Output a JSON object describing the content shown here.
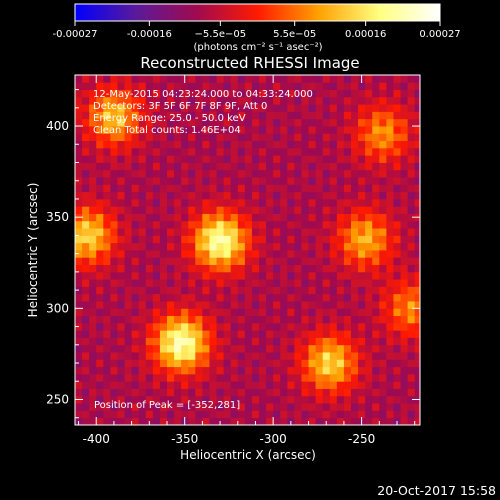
{
  "chart_data": {
    "type": "heatmap",
    "title": "Reconstructed RHESSI Image",
    "xlabel": "Heliocentric X (arcsec)",
    "ylabel": "Heliocentric Y (arcsec)",
    "xlim": [
      -412,
      -217
    ],
    "ylim": [
      236,
      428
    ],
    "x_ticks": [
      -400,
      -350,
      -300,
      -250
    ],
    "x_tick_labels": [
      "-400",
      "-350",
      "-300",
      "-250"
    ],
    "y_ticks": [
      250,
      300,
      350,
      400
    ],
    "y_tick_labels": [
      "250",
      "300",
      "350",
      "400"
    ],
    "colorbar": {
      "range": [
        -0.00027,
        0.00027
      ],
      "colormap": "blue-purple-red-orange-yellow-white",
      "stops": [
        "#0000ff",
        "#5a1a9a",
        "#a00a50",
        "#ff1a00",
        "#ffa000",
        "#ffff80",
        "#ffffff"
      ],
      "tick_values": [
        -0.00027,
        -0.00016,
        -5.5e-05,
        5.5e-05,
        0.00016,
        0.00027
      ],
      "tick_labels": [
        "-0.00027",
        "-0.00016",
        "−5.5e−05",
        "5.5e−05",
        "0.00016",
        "0.00027"
      ],
      "units": "(photons cm⁻² s⁻¹ asec⁻²)"
    },
    "sources": [
      {
        "x": -330,
        "y": 337,
        "level": 0.00026
      },
      {
        "x": -352,
        "y": 281,
        "level": 0.00027
      },
      {
        "x": -405,
        "y": 340,
        "level": 0.00018
      },
      {
        "x": -390,
        "y": 405,
        "level": 0.00016
      },
      {
        "x": -268,
        "y": 270,
        "level": 0.00018
      },
      {
        "x": -248,
        "y": 338,
        "level": 0.00014
      },
      {
        "x": -238,
        "y": 396,
        "level": 0.00011
      },
      {
        "x": -222,
        "y": 300,
        "level": 0.0001
      }
    ],
    "background_level": -8e-05,
    "peak_position": [
      -352,
      281
    ]
  },
  "info": {
    "line1": "12-May-2015 04:23:24.000 to 04:33:24.000",
    "line2": "Detectors: 3F 5F 6F 7F 8F 9F, Att 0",
    "line3": "Energy Range: 25.0 - 50.0 keV",
    "line4": "Clean     Total counts: 1.46E+04"
  },
  "peak_label": "Position of Peak = [-352,281]",
  "footer_date": "20-Oct-2017 15:58"
}
